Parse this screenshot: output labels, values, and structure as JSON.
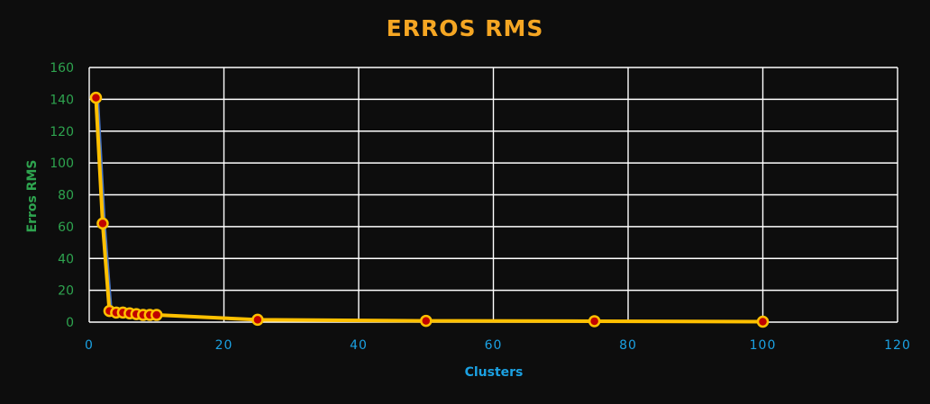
{
  "colors": {
    "background": "#0d0d0d",
    "title": "#f5a623",
    "grid": "#ffffff",
    "y_axis_text": "#2ea44f",
    "x_axis_text": "#1ba1e2",
    "series_under_line": "#4472c4",
    "series_line": "#ffc000",
    "marker_fill": "#c00000",
    "marker_stroke": "#ffc000"
  },
  "chart_data": {
    "type": "scatter",
    "title": "ERROS RMS",
    "xlabel": "Clusters",
    "ylabel": "Erros RMS",
    "xlim": [
      0,
      120
    ],
    "ylim": [
      0,
      160
    ],
    "x_ticks": [
      0,
      20,
      40,
      60,
      80,
      100,
      120
    ],
    "y_ticks": [
      0,
      20,
      40,
      60,
      80,
      100,
      120,
      140,
      160
    ],
    "grid": true,
    "legend": "none",
    "series": [
      {
        "x": [
          1,
          2,
          3,
          4,
          5,
          6,
          7,
          8,
          9,
          10,
          25,
          50,
          75,
          100
        ],
        "y": [
          141,
          62,
          7,
          6,
          6,
          5.5,
          5,
          4.5,
          4.5,
          4.5,
          1.5,
          0.8,
          0.6,
          0.3
        ]
      }
    ]
  }
}
